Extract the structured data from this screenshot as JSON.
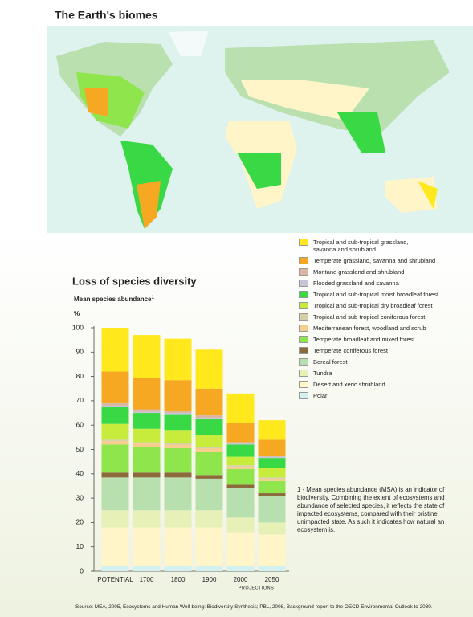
{
  "map": {
    "title": "The Earth's biomes"
  },
  "chart_data": {
    "type": "stacked-bar",
    "title": "Loss of species diversity",
    "y_label": "Mean species abundance",
    "y_label_note": "1",
    "y_unit": "%",
    "categories": [
      "POTENTIAL",
      "1700",
      "1800",
      "1900",
      "2000",
      "2050"
    ],
    "annotation": "PROJECTIONS",
    "ylim": [
      0,
      100
    ],
    "yticks": [
      0,
      10,
      20,
      30,
      40,
      50,
      60,
      70,
      80,
      90,
      100
    ],
    "series": [
      {
        "name": "Polar",
        "color": "#d3f1f1",
        "values": [
          2,
          2,
          2,
          2,
          2,
          2
        ]
      },
      {
        "name": "Desert and xeric shrubland",
        "color": "#fff5c8",
        "values": [
          16,
          16,
          16,
          16,
          14,
          13
        ]
      },
      {
        "name": "Tundra",
        "color": "#e7f0b7",
        "values": [
          7,
          7,
          7,
          7,
          6,
          5
        ]
      },
      {
        "name": "Boreal forest",
        "color": "#b8dfae",
        "values": [
          13.5,
          13.5,
          13.5,
          13,
          12,
          11
        ]
      },
      {
        "name": "Temperate coniferous forest",
        "color": "#8c6a3c",
        "values": [
          2,
          2,
          2,
          1.5,
          1.5,
          1
        ]
      },
      {
        "name": "Temperate broadleaf and mixed forest",
        "color": "#8ee64c",
        "values": [
          11.5,
          10.5,
          10,
          9.5,
          6.5,
          5
        ]
      },
      {
        "name": "Mediterranean forest, woodland and scrub",
        "color": "#f6cf90",
        "values": [
          1.5,
          1.5,
          1.5,
          1.5,
          1,
          1
        ]
      },
      {
        "name": "Tropical and sub-tropical coniferous forest",
        "color": "#d4cfa9",
        "values": [
          0.5,
          0.5,
          0.5,
          0.5,
          0.5,
          0.5
        ]
      },
      {
        "name": "Tropical and sub-tropical dry broadleaf forest",
        "color": "#c8ec3b",
        "values": [
          6.5,
          5.5,
          5.5,
          5,
          3.5,
          4
        ]
      },
      {
        "name": "Tropical and sub-tropical moist broadleaf forest",
        "color": "#39d946",
        "values": [
          7,
          6.5,
          6.5,
          6.5,
          5,
          4
        ]
      },
      {
        "name": "Flooded grassland and savanna",
        "color": "#c9c3da",
        "values": [
          0.5,
          0.5,
          0.5,
          0.5,
          0.5,
          0.5
        ]
      },
      {
        "name": "Montane grassland and shrubland",
        "color": "#d9b8a3",
        "values": [
          1,
          1,
          1,
          1,
          0.5,
          0.5
        ]
      },
      {
        "name": "Temperate grassland, savanna and shrubland",
        "color": "#f7a823",
        "values": [
          13,
          13,
          12.5,
          11,
          8,
          6.5
        ]
      },
      {
        "name": "Tropical and sub-tropical grassland, savanna and shrubland",
        "color": "#ffe81c",
        "values": [
          18,
          17.5,
          17,
          16,
          12,
          8
        ]
      }
    ],
    "footnote": "1 - Mean species abundance (MSA) is an indicator of biodiversity. Combining the extent of ecosystems and abundance of selected species, it reflects the state of impacted ecosystems, compared with their pristine, unimpacted state. As such it indicates how natural an ecosystem is.",
    "source": "Source: MEA, 2005, Ecosystems and Human Well-being: Biodiversity Synthesis; PBL, 2008, Background report to the OECD Environmental Outlook to 2030."
  }
}
